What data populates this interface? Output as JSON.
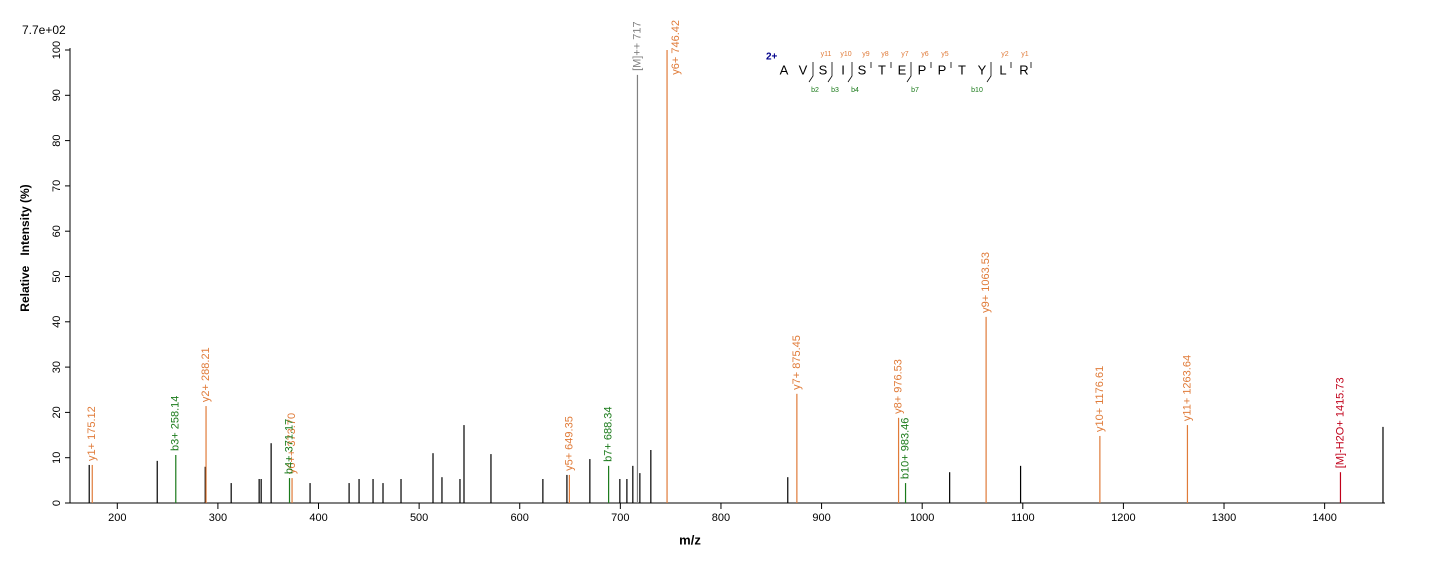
{
  "chart_data": {
    "type": "stem",
    "scale_label": "7.7e+02",
    "x_label": "m/z",
    "y_label": "Relative   Intensity (%)",
    "xlim": [
      153,
      1460
    ],
    "ylim": [
      0,
      100
    ],
    "xticks": [
      200,
      300,
      400,
      500,
      600,
      700,
      800,
      900,
      1000,
      1100,
      1200,
      1300,
      1400
    ],
    "yticks": [
      0,
      10,
      20,
      30,
      40,
      50,
      60,
      70,
      80,
      90,
      100
    ],
    "series": [
      {
        "color": "#000000",
        "x": [
          172.1,
          239.7,
          287.4,
          313.2,
          341,
          343,
          352.9,
          391.6,
          430.4,
          440.3,
          454.2,
          464.1,
          482,
          513.8,
          522.7,
          540.6,
          544.6,
          571.4,
          623,
          646.9,
          669.7,
          699.5,
          706.5,
          712.4,
          719.4,
          730.3,
          866.4,
          1027.3,
          1097.8,
          1458
        ],
        "values": [
          8.4,
          9.3,
          8,
          4.4,
          5.3,
          5.3,
          13.2,
          4.4,
          4.4,
          5.3,
          5.3,
          4.4,
          5.3,
          11,
          5.7,
          5.3,
          17.2,
          10.8,
          5.3,
          6.2,
          9.7,
          5.3,
          5.3,
          8.2,
          6.6,
          11.7,
          5.7,
          6.8,
          8.2,
          16.8
        ]
      },
      {
        "color": "#e07b39",
        "x": [
          175.12,
          288.21,
          373.7,
          649.35,
          746.42,
          875.45,
          976.53,
          1063.53,
          1176.61,
          1263.64
        ],
        "values": [
          8.4,
          21.4,
          5.5,
          6.2,
          100,
          24.1,
          18.8,
          41.1,
          14.8,
          17.2
        ],
        "labels": [
          "y1+ 175.12",
          "y2+ 288.21",
          "y6++ 373.70",
          "y5+ 649.35",
          "y6+ 746.42",
          "y7+ 875.45",
          "y8+ 976.53",
          "y9+ 1063.53",
          "y10+ 1176.61",
          "y11+ 1263.64"
        ]
      },
      {
        "color": "#1a7a1a",
        "x": [
          258.14,
          371.17,
          688.34,
          983.46
        ],
        "values": [
          10.6,
          5.5,
          8.2,
          4.4
        ],
        "labels": [
          "b3+ 258.14",
          "b4+ 371.17",
          "b7+ 688.34",
          "b10+ 983.46"
        ]
      },
      {
        "color": "#808080",
        "x": [
          717
        ],
        "values": [
          94.5
        ],
        "labels": [
          "[M]++ 717"
        ]
      },
      {
        "color": "#c0001a",
        "x": [
          1415.73
        ],
        "values": [
          6.8
        ],
        "labels": [
          "[M]-H2O+ 1415.73"
        ]
      }
    ]
  },
  "peptide": {
    "charge": "2+",
    "residues": [
      "A",
      "V",
      "S",
      "I",
      "S",
      "T",
      "E",
      "P",
      "P",
      "T",
      "Y",
      "L",
      "R"
    ],
    "y_ions": [
      "y11",
      "y10",
      "y9",
      "y8",
      "y7",
      "y6",
      "y5",
      "y2",
      "y1"
    ],
    "b_ions": [
      "b2",
      "b3",
      "b4",
      "b7",
      "b10"
    ]
  }
}
